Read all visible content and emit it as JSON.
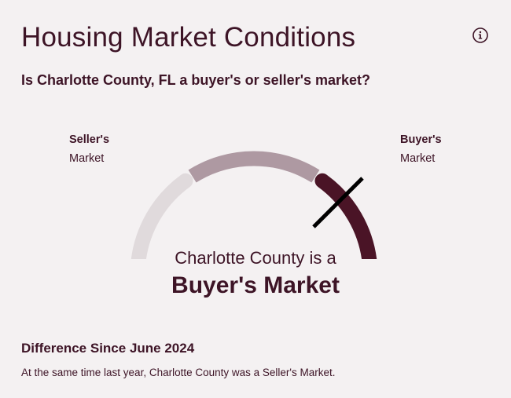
{
  "header": {
    "title": "Housing Market Conditions",
    "subtitle": "Is Charlotte County, FL a buyer's or seller's market?",
    "info_icon": "info-icon"
  },
  "gauge": {
    "left_label_line1": "Seller's",
    "left_label_line2": "Market",
    "right_label_line1": "Buyer's",
    "right_label_line2": "Market",
    "segments": [
      {
        "name": "seller-segment",
        "color": "#e0dadc"
      },
      {
        "name": "neutral-segment",
        "color": "#ae99a2"
      },
      {
        "name": "buyer-segment",
        "color": "#4a1426"
      }
    ],
    "needle_color": "#000000",
    "needle_position": "buyer-segment"
  },
  "result": {
    "line1": "Charlotte County is a",
    "line2": "Buyer's Market"
  },
  "difference": {
    "title": "Difference Since June 2024",
    "text": "At the same time last year, Charlotte County was a Seller's Market."
  }
}
